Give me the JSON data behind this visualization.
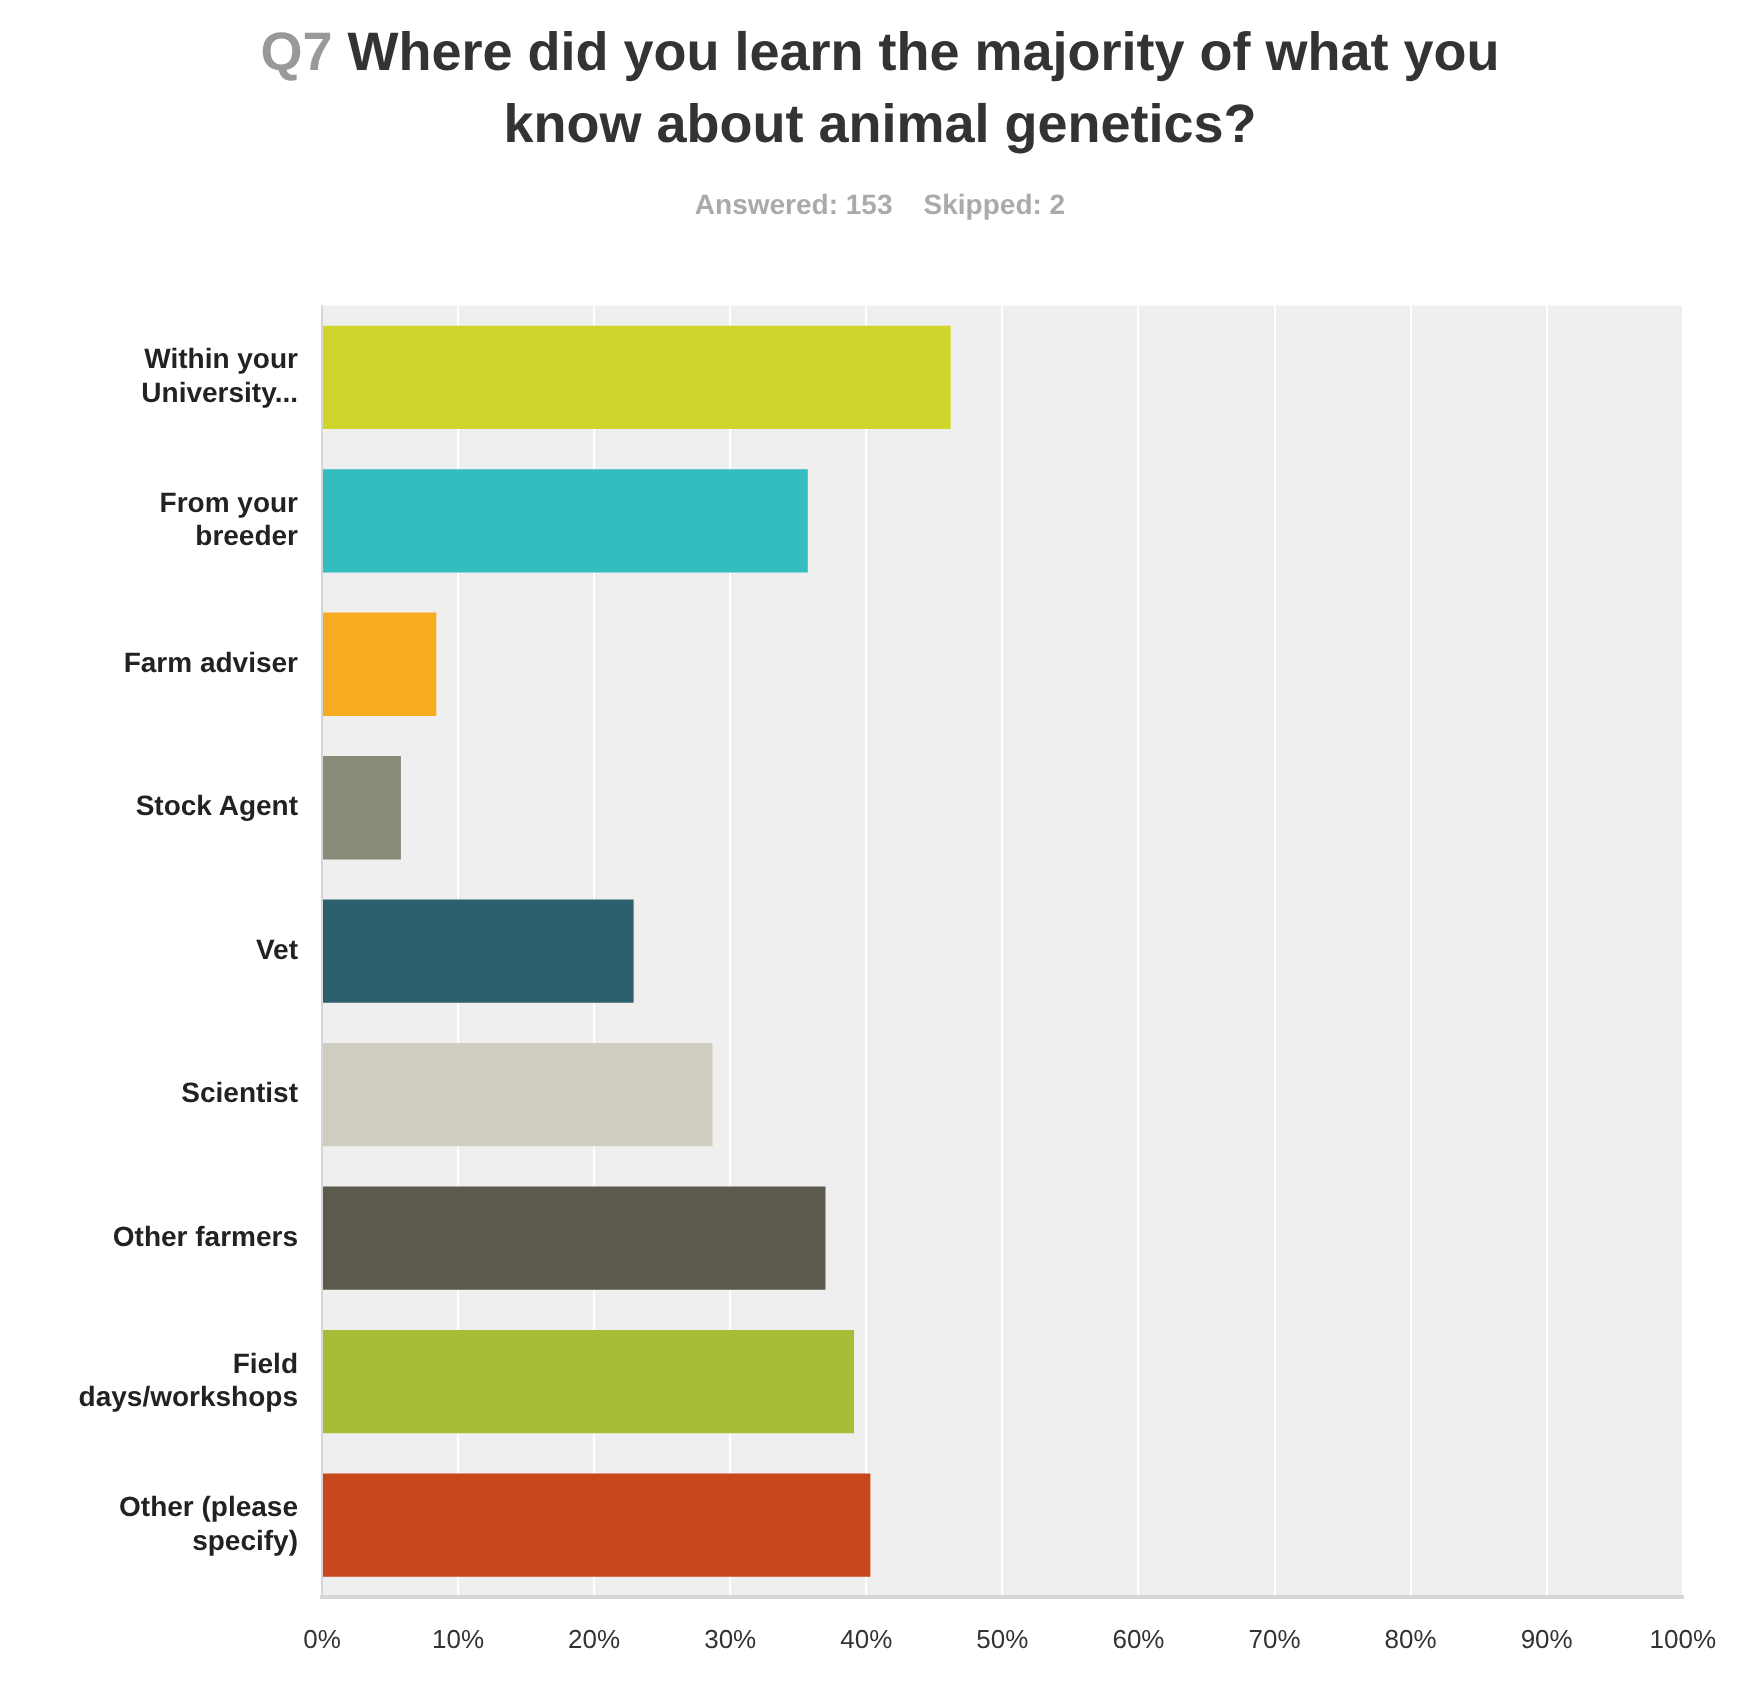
{
  "chart_data": {
    "type": "bar",
    "orientation": "horizontal",
    "title": "Q7 Where did you learn the majority of what you know about animal genetics?",
    "subtitle": "Answered: 153    Skipped: 2",
    "categories": [
      "Within your University...",
      "From your breeder",
      "Farm adviser",
      "Stock Agent",
      "Vet",
      "Scientist",
      "Other farmers",
      "Field days/workshops",
      "Other (please specify)"
    ],
    "values": [
      46.2,
      35.7,
      8.4,
      5.8,
      22.9,
      28.7,
      37.0,
      39.1,
      40.3
    ],
    "colors": [
      "#cfd52a",
      "#33bdbf",
      "#f6ab20",
      "#8a8a79",
      "#2e5f6d",
      "#cfcdbf",
      "#5c5a4c",
      "#a8bc38",
      "#c7461c"
    ],
    "xlim": [
      0,
      100
    ],
    "xticks": [
      {
        "value": 0,
        "label": "0%"
      },
      {
        "value": 10,
        "label": "10%"
      },
      {
        "value": 20,
        "label": "20%"
      },
      {
        "value": 30,
        "label": "30%"
      },
      {
        "value": 40,
        "label": "40%"
      },
      {
        "value": 50,
        "label": "50%"
      },
      {
        "value": 60,
        "label": "60%"
      },
      {
        "value": 70,
        "label": "70%"
      },
      {
        "value": 80,
        "label": "80%"
      },
      {
        "value": 90,
        "label": "90%"
      },
      {
        "value": 100,
        "label": "100%"
      }
    ],
    "grid": "x"
  }
}
